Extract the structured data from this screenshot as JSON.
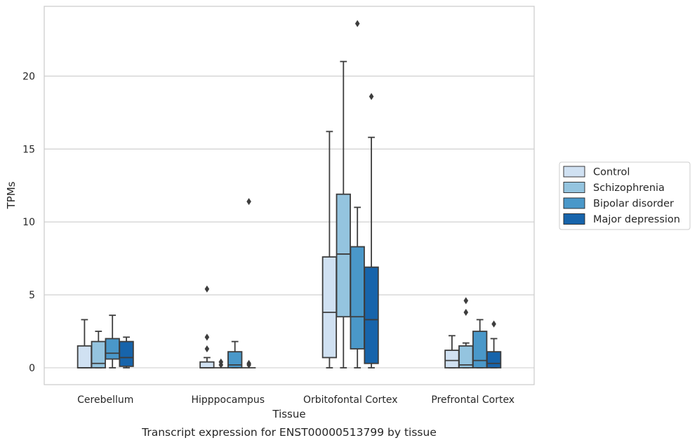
{
  "chart_data": {
    "type": "box",
    "title": "",
    "caption": "Transcript expression for ENST00000513799 by tissue",
    "xlabel": "Tissue",
    "ylabel": "TPMs",
    "ylim": [
      -1.15,
      24.8
    ],
    "yticks": [
      0,
      5,
      10,
      15,
      20
    ],
    "grid": true,
    "legend_position": "right",
    "categories": [
      "Cerebellum",
      "Hipppocampus",
      "Orbitofontal Cortex",
      "Prefrontal Cortex"
    ],
    "series": [
      {
        "name": "Control",
        "color": "#d0e1f2",
        "boxes": [
          {
            "low": 0,
            "q1": 0,
            "median": 0,
            "q3": 1.5,
            "high": 3.3,
            "outliers": []
          },
          {
            "low": 0,
            "q1": 0,
            "median": 0,
            "q3": 0.4,
            "high": 0.7,
            "outliers": [
              1.3,
              2.1,
              5.4
            ]
          },
          {
            "low": 0,
            "q1": 0.7,
            "median": 3.8,
            "q3": 7.6,
            "high": 16.2,
            "outliers": []
          },
          {
            "low": 0,
            "q1": 0,
            "median": 0.5,
            "q3": 1.2,
            "high": 2.2,
            "outliers": []
          }
        ]
      },
      {
        "name": "Schizophrenia",
        "color": "#94c4df",
        "boxes": [
          {
            "low": 0,
            "q1": 0,
            "median": 0.3,
            "q3": 1.8,
            "high": 2.5,
            "outliers": []
          },
          {
            "low": 0,
            "q1": 0,
            "median": 0,
            "q3": 0,
            "high": 0,
            "outliers": [
              0.2,
              0.4
            ]
          },
          {
            "low": 0,
            "q1": 3.5,
            "median": 7.8,
            "q3": 11.9,
            "high": 21.0,
            "outliers": []
          },
          {
            "low": 0,
            "q1": 0,
            "median": 0.2,
            "q3": 1.5,
            "high": 1.7,
            "outliers": [
              3.8,
              4.6
            ]
          }
        ]
      },
      {
        "name": "Bipolar disorder",
        "color": "#4a98c9",
        "boxes": [
          {
            "low": 0,
            "q1": 0.6,
            "median": 1.0,
            "q3": 2.0,
            "high": 3.6,
            "outliers": []
          },
          {
            "low": 0,
            "q1": 0,
            "median": 0.2,
            "q3": 1.1,
            "high": 1.8,
            "outliers": []
          },
          {
            "low": 0,
            "q1": 1.3,
            "median": 3.5,
            "q3": 8.3,
            "high": 11.0,
            "outliers": [
              23.6
            ]
          },
          {
            "low": 0,
            "q1": 0,
            "median": 0.5,
            "q3": 2.5,
            "high": 3.3,
            "outliers": []
          }
        ]
      },
      {
        "name": "Major depression",
        "color": "#1764ab",
        "boxes": [
          {
            "low": 0,
            "q1": 0.1,
            "median": 0.7,
            "q3": 1.8,
            "high": 2.1,
            "outliers": []
          },
          {
            "low": 0,
            "q1": 0,
            "median": 0,
            "q3": 0,
            "high": 0,
            "outliers": [
              0.2,
              0.3,
              11.4
            ]
          },
          {
            "low": 0,
            "q1": 0.3,
            "median": 3.3,
            "q3": 6.9,
            "high": 15.8,
            "outliers": [
              18.6
            ]
          },
          {
            "low": 0,
            "q1": 0,
            "median": 0.3,
            "q3": 1.1,
            "high": 2.0,
            "outliers": [
              3.0
            ]
          }
        ]
      }
    ]
  }
}
